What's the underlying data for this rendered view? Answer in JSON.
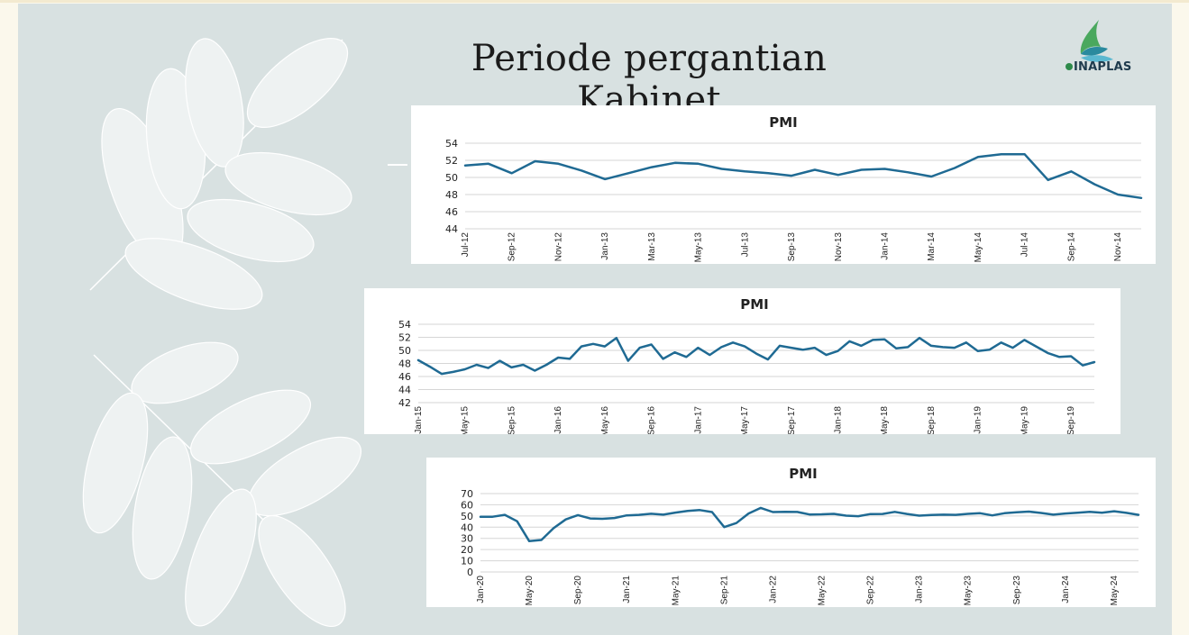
{
  "slide": {
    "title": "Periode pergantian Kabinet",
    "logo_text": "INAPLAS"
  },
  "colors": {
    "background": "#d8e1e1",
    "line": "#1f6a93",
    "logo_green": "#2d8a4a",
    "logo_navy": "#1f3b4d"
  },
  "chart_data": [
    {
      "type": "line",
      "title": "PMI",
      "ylim": [
        44,
        54
      ],
      "yticks": [
        54,
        52,
        50,
        48,
        46,
        44
      ],
      "grid": true,
      "x_tick_labels": [
        "Jul-12",
        "Sep-12",
        "Nov-12",
        "Jan-13",
        "Mar-13",
        "May-13",
        "Jul-13",
        "Sep-13",
        "Nov-13",
        "Jan-14",
        "Mar-14",
        "May-14",
        "Jul-14",
        "Sep-14",
        "Nov-14"
      ],
      "x": [
        "Jul-12",
        "Aug-12",
        "Sep-12",
        "Oct-12",
        "Nov-12",
        "Dec-12",
        "Jan-13",
        "Feb-13",
        "Mar-13",
        "Apr-13",
        "May-13",
        "Jun-13",
        "Jul-13",
        "Aug-13",
        "Sep-13",
        "Oct-13",
        "Nov-13",
        "Dec-13",
        "Jan-14",
        "Feb-14",
        "Mar-14",
        "Apr-14",
        "May-14",
        "Jun-14",
        "Jul-14",
        "Aug-14",
        "Sep-14",
        "Oct-14",
        "Nov-14",
        "Dec-14"
      ],
      "series": [
        {
          "values": [
            51.4,
            51.6,
            50.5,
            51.9,
            51.6,
            50.8,
            49.8,
            50.5,
            51.2,
            51.7,
            51.6,
            51.0,
            50.7,
            50.5,
            50.2,
            50.9,
            50.3,
            50.9,
            51.0,
            50.6,
            50.1,
            51.1,
            52.4,
            52.7,
            52.7,
            49.7,
            50.7,
            49.2,
            48.0,
            47.6
          ]
        }
      ]
    },
    {
      "type": "line",
      "title": "PMI",
      "ylim": [
        42,
        54
      ],
      "yticks": [
        54,
        52,
        50,
        48,
        46,
        44,
        42
      ],
      "grid": true,
      "x_tick_labels": [
        "Jan-15",
        "May-15",
        "Sep-15",
        "Jan-16",
        "May-16",
        "Sep-16",
        "Jan-17",
        "May-17",
        "Sep-17",
        "Jan-18",
        "May-18",
        "Sep-18",
        "Jan-19",
        "May-19",
        "Sep-19"
      ],
      "x": [
        "Jan-15",
        "Feb-15",
        "Mar-15",
        "Apr-15",
        "May-15",
        "Jun-15",
        "Jul-15",
        "Aug-15",
        "Sep-15",
        "Oct-15",
        "Nov-15",
        "Dec-15",
        "Jan-16",
        "Feb-16",
        "Mar-16",
        "Apr-16",
        "May-16",
        "Jun-16",
        "Jul-16",
        "Aug-16",
        "Sep-16",
        "Oct-16",
        "Nov-16",
        "Dec-16",
        "Jan-17",
        "Feb-17",
        "Mar-17",
        "Apr-17",
        "May-17",
        "Jun-17",
        "Jul-17",
        "Aug-17",
        "Sep-17",
        "Oct-17",
        "Nov-17",
        "Dec-17",
        "Jan-18",
        "Feb-18",
        "Mar-18",
        "Apr-18",
        "May-18",
        "Jun-18",
        "Jul-18",
        "Aug-18",
        "Sep-18",
        "Oct-18",
        "Nov-18",
        "Dec-18",
        "Jan-19",
        "Feb-19",
        "Mar-19",
        "Apr-19",
        "May-19",
        "Jun-19",
        "Jul-19",
        "Aug-19",
        "Sep-19",
        "Oct-19",
        "Nov-19"
      ],
      "series": [
        {
          "values": [
            48.5,
            47.5,
            46.4,
            46.7,
            47.1,
            47.8,
            47.3,
            48.4,
            47.4,
            47.8,
            46.9,
            47.8,
            48.9,
            48.7,
            50.6,
            51.0,
            50.6,
            51.9,
            48.4,
            50.4,
            50.9,
            48.7,
            49.7,
            49.0,
            50.4,
            49.3,
            50.5,
            51.2,
            50.6,
            49.5,
            48.6,
            50.7,
            50.4,
            50.1,
            50.4,
            49.3,
            49.9,
            51.4,
            50.7,
            51.6,
            51.7,
            50.3,
            50.5,
            51.9,
            50.7,
            50.5,
            50.4,
            51.2,
            49.9,
            50.1,
            51.2,
            50.4,
            51.6,
            50.6,
            49.6,
            49.0,
            49.1,
            47.7,
            48.2
          ]
        }
      ]
    },
    {
      "type": "line",
      "title": "PMI",
      "ylim": [
        0,
        70
      ],
      "yticks": [
        70,
        60,
        50,
        40,
        30,
        20,
        10,
        0
      ],
      "grid": true,
      "x_tick_labels": [
        "Jan-20",
        "May-20",
        "Sep-20",
        "Jan-21",
        "May-21",
        "Sep-21",
        "Jan-22",
        "May-22",
        "Sep-22",
        "Jan-23",
        "May-23",
        "Sep-23",
        "Jan-24",
        "May-24"
      ],
      "x": [
        "Jan-20",
        "Feb-20",
        "Mar-20",
        "Apr-20",
        "May-20",
        "Jun-20",
        "Jul-20",
        "Aug-20",
        "Sep-20",
        "Oct-20",
        "Nov-20",
        "Dec-20",
        "Jan-21",
        "Feb-21",
        "Mar-21",
        "Apr-21",
        "May-21",
        "Jun-21",
        "Jul-21",
        "Aug-21",
        "Sep-21",
        "Oct-21",
        "Nov-21",
        "Dec-21",
        "Jan-22",
        "Feb-22",
        "Mar-22",
        "Apr-22",
        "May-22",
        "Jun-22",
        "Jul-22",
        "Aug-22",
        "Sep-22",
        "Oct-22",
        "Nov-22",
        "Dec-22",
        "Jan-23",
        "Feb-23",
        "Mar-23",
        "Apr-23",
        "May-23",
        "Jun-23",
        "Jul-23",
        "Aug-23",
        "Sep-23",
        "Oct-23",
        "Nov-23",
        "Dec-23",
        "Jan-24",
        "Feb-24",
        "Mar-24",
        "Apr-24",
        "May-24",
        "Jun-24",
        "Jul-24"
      ],
      "series": [
        {
          "values": [
            49.3,
            49.3,
            51.0,
            45.3,
            27.5,
            28.6,
            39.1,
            46.9,
            50.8,
            47.8,
            47.5,
            48.2,
            50.5,
            51.0,
            52.0,
            51.2,
            53.0,
            54.5,
            55.3,
            53.5,
            40.1,
            43.7,
            52.2,
            57.2,
            53.5,
            53.7,
            53.6,
            51.3,
            51.5,
            51.9,
            50.3,
            49.8,
            51.7,
            51.8,
            53.7,
            51.8,
            50.3,
            50.9,
            51.2,
            51.0,
            51.9,
            52.5,
            50.5,
            52.5,
            53.3,
            53.9,
            52.7,
            51.2,
            52.2,
            52.9,
            53.7,
            52.9,
            54.2,
            52.8,
            51.0
          ]
        }
      ]
    }
  ]
}
